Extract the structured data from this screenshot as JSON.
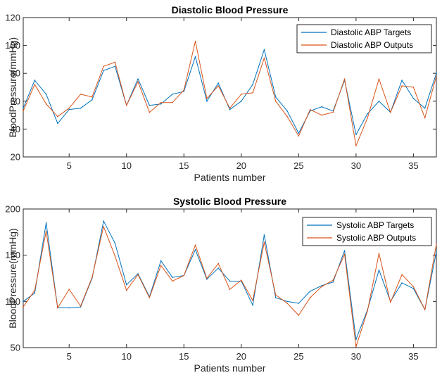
{
  "chart_data": [
    {
      "type": "line",
      "title": "Diastolic Blood Pressure",
      "xlabel": "Patients number",
      "ylabel": "BloodPressure(mmHg)",
      "xlim": [
        1,
        37
      ],
      "ylim": [
        20,
        120
      ],
      "xticks": [
        5,
        10,
        15,
        20,
        25,
        30,
        35
      ],
      "yticks": [
        20,
        40,
        60,
        80,
        100,
        120
      ],
      "legend_position": "top-right",
      "grid": false,
      "x": [
        1,
        2,
        3,
        4,
        5,
        6,
        7,
        8,
        9,
        10,
        11,
        12,
        13,
        14,
        15,
        16,
        17,
        18,
        19,
        20,
        21,
        22,
        23,
        24,
        25,
        26,
        27,
        28,
        29,
        30,
        31,
        32,
        33,
        34,
        35,
        36,
        37
      ],
      "series": [
        {
          "name": "Diastolic ABP Targets",
          "color": "#0072BD",
          "values": [
            55,
            75,
            65,
            44,
            54,
            55,
            61,
            82,
            85,
            57,
            76,
            57,
            58,
            65,
            67,
            92,
            60,
            73,
            54,
            60,
            72,
            97,
            63,
            53,
            37,
            53,
            56,
            53,
            75,
            36,
            51,
            60,
            52,
            75,
            62,
            55,
            80
          ]
        },
        {
          "name": "Diastolic ABP Outputs",
          "color": "#D95319",
          "values": [
            53,
            72,
            58,
            49,
            55,
            65,
            63,
            85,
            88,
            57,
            74,
            52,
            59,
            59,
            68,
            103,
            62,
            71,
            55,
            65,
            66,
            91,
            60,
            49,
            35,
            54,
            50,
            52,
            76,
            28,
            48,
            76,
            52,
            71,
            70,
            48,
            78
          ]
        }
      ]
    },
    {
      "type": "line",
      "title": "Systolic Blood Pressure",
      "xlabel": "Patients number",
      "ylabel": "BloodPressure(mmHg)",
      "xlim": [
        1,
        37
      ],
      "ylim": [
        50,
        200
      ],
      "xticks": [
        5,
        10,
        15,
        20,
        25,
        30,
        35
      ],
      "yticks": [
        50,
        100,
        150,
        200
      ],
      "legend_position": "top-right",
      "grid": false,
      "x": [
        1,
        2,
        3,
        4,
        5,
        6,
        7,
        8,
        9,
        10,
        11,
        12,
        13,
        14,
        15,
        16,
        17,
        18,
        19,
        20,
        21,
        22,
        23,
        24,
        25,
        26,
        27,
        28,
        29,
        30,
        31,
        32,
        33,
        34,
        35,
        36,
        37
      ],
      "series": [
        {
          "name": "Systolic ABP Targets",
          "color": "#0072BD",
          "values": [
            100,
            109,
            185,
            93,
            93,
            94,
            125,
            187,
            163,
            118,
            130,
            105,
            144,
            126,
            128,
            156,
            124,
            136,
            122,
            122,
            96,
            172,
            104,
            100,
            98,
            111,
            117,
            121,
            155,
            59,
            91,
            134,
            100,
            120,
            114,
            91,
            154
          ]
        },
        {
          "name": "Systolic ABP Outputs",
          "color": "#D95319",
          "values": [
            94,
            112,
            176,
            93,
            113,
            95,
            126,
            181,
            149,
            112,
            129,
            104,
            139,
            122,
            128,
            161,
            125,
            141,
            113,
            123,
            101,
            164,
            107,
            98,
            85,
            104,
            116,
            123,
            151,
            51,
            90,
            152,
            99,
            129,
            116,
            91,
            162
          ]
        }
      ]
    }
  ]
}
